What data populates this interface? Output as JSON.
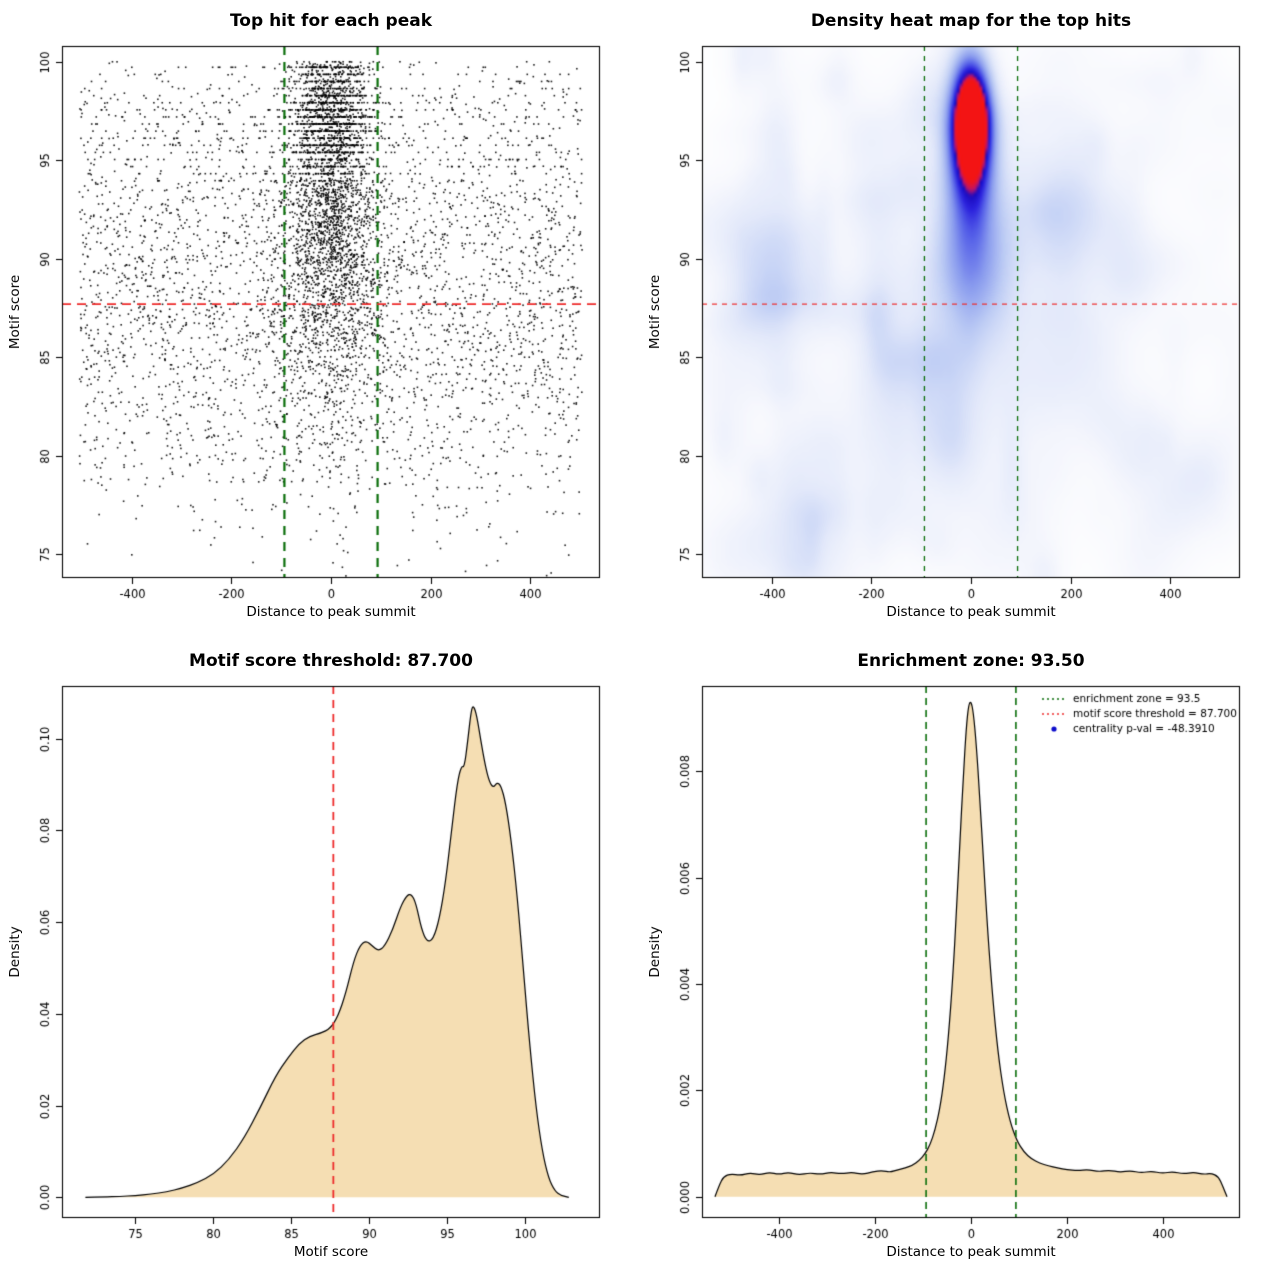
{
  "figure": {
    "background": "#ffffff"
  },
  "chart_data": [
    {
      "type": "scatter",
      "title": "Top hit for each peak",
      "xlabel": "Distance to peak summit",
      "ylabel": "Motif score",
      "xlim": [
        -540,
        540
      ],
      "ylim": [
        73.8,
        100.8
      ],
      "xticks": [
        -400,
        -200,
        0,
        200,
        400
      ],
      "xtick_labels": [
        "-400",
        "-200",
        "0",
        "200",
        "400"
      ],
      "yticks": [
        75,
        80,
        85,
        90,
        95,
        100
      ],
      "ytick_labels": [
        "75",
        "80",
        "85",
        "90",
        "95",
        "100"
      ],
      "point_color": "#000000",
      "vlines": [
        {
          "x": -93.5,
          "color": "#0a6e0a",
          "width": 2.2,
          "dash": [
            9,
            7
          ]
        },
        {
          "x": 93.5,
          "color": "#0a6e0a",
          "width": 2.2,
          "dash": [
            9,
            7
          ]
        }
      ],
      "hlines": [
        {
          "y": 87.7,
          "color": "#ee2c2c",
          "width": 1.8,
          "dash": [
            9,
            6
          ]
        }
      ],
      "points_model": {
        "seed": 20,
        "n": 6900,
        "y_mixture": [
          {
            "w": 0.3,
            "mu": 97.2,
            "sd": 1.7
          },
          {
            "w": 0.2,
            "mu": 93.2,
            "sd": 1.8
          },
          {
            "w": 0.18,
            "mu": 90.0,
            "sd": 1.7
          },
          {
            "w": 0.16,
            "mu": 86.6,
            "sd": 2.0
          },
          {
            "w": 0.11,
            "mu": 83.0,
            "sd": 2.4
          },
          {
            "w": 0.05,
            "mu": 79.5,
            "sd": 2.6
          }
        ],
        "x_center_sd": 46,
        "x_uniform_halfwidth": 505,
        "band_min_y": 94,
        "band_prob": 0.6,
        "band_step": 0.36
      }
    },
    {
      "type": "heatmap",
      "title": "Density heat map for the top hits",
      "xlabel": "Distance to peak summit",
      "ylabel": "Motif score",
      "xlim": [
        -540,
        540
      ],
      "ylim": [
        73.8,
        100.8
      ],
      "xticks": [
        -400,
        -200,
        0,
        200,
        400
      ],
      "xtick_labels": [
        "-400",
        "-200",
        "0",
        "200",
        "400"
      ],
      "yticks": [
        75,
        80,
        85,
        90,
        95,
        100
      ],
      "ytick_labels": [
        "75",
        "80",
        "85",
        "90",
        "95",
        "100"
      ],
      "vlines": [
        {
          "x": -93.5,
          "color": "#0a6e0a",
          "width": 1.3,
          "dash": [
            5,
            5
          ]
        },
        {
          "x": 93.5,
          "color": "#0a6e0a",
          "width": 1.3,
          "dash": [
            5,
            5
          ]
        }
      ],
      "hlines": [
        {
          "y": 87.7,
          "color": "#ee2c2c",
          "width": 1.2,
          "dash": [
            5,
            5
          ]
        }
      ],
      "colormap": [
        {
          "t": 0.0,
          "c": "#ffffff"
        },
        {
          "t": 0.06,
          "c": "#f7f8fd"
        },
        {
          "t": 0.16,
          "c": "#e3e9fa"
        },
        {
          "t": 0.3,
          "c": "#bccbf4"
        },
        {
          "t": 0.46,
          "c": "#8a9cee"
        },
        {
          "t": 0.6,
          "c": "#5560e8"
        },
        {
          "t": 0.72,
          "c": "#2b22dd"
        },
        {
          "t": 0.82,
          "c": "#1b0bbf"
        },
        {
          "t": 0.88,
          "c": "#b41470"
        },
        {
          "t": 0.94,
          "c": "#e01535"
        },
        {
          "t": 1.0,
          "c": "#f31414"
        }
      ],
      "blobs": [
        {
          "cx": 0,
          "cy": 97.2,
          "sx": 24,
          "sy": 1.9,
          "amp": 1.0
        },
        {
          "cx": 0,
          "cy": 96.0,
          "sx": 33,
          "sy": 2.6,
          "amp": 0.55
        },
        {
          "cx": 0,
          "cy": 93.2,
          "sx": 40,
          "sy": 2.6,
          "amp": 0.23
        },
        {
          "cx": 0,
          "cy": 90.0,
          "sx": 52,
          "sy": 2.2,
          "amp": 0.17
        },
        {
          "cx": 0,
          "cy": 88.0,
          "sx": 80,
          "sy": 3.0,
          "amp": 0.09
        },
        {
          "cx": 0,
          "cy": 85.5,
          "sx": 200,
          "sy": 5.0,
          "amp": 0.05
        },
        {
          "cx": 0,
          "cy": 91.5,
          "sx": 300,
          "sy": 8.0,
          "amp": 0.035
        },
        {
          "cx": 0,
          "cy": 81.0,
          "sx": 280,
          "sy": 4.0,
          "amp": 0.035
        }
      ],
      "noise": {
        "seed": 11,
        "count": 190,
        "amp_min": 0.012,
        "amp_max": 0.05,
        "sx_min": 15,
        "sx_max": 65,
        "sy_min": 0.7,
        "sy_max": 2.3
      }
    },
    {
      "type": "density",
      "title": "Motif score threshold: 87.700",
      "xlabel": "Motif score",
      "ylabel": "Density",
      "xlim": [
        70.3,
        104.8
      ],
      "ylim": [
        -0.0045,
        0.1115
      ],
      "xticks": [
        75,
        80,
        85,
        90,
        95,
        100
      ],
      "xtick_labels": [
        "75",
        "80",
        "85",
        "90",
        "95",
        "100"
      ],
      "yticks": [
        0,
        0.02,
        0.04,
        0.06,
        0.08,
        0.1
      ],
      "ytick_labels": [
        "0.00",
        "0.02",
        "0.04",
        "0.06",
        "0.08",
        "0.10"
      ],
      "fill": "#f5deb3",
      "stroke": "#000000",
      "vlines": [
        {
          "x": 87.7,
          "color": "#ee2c2c",
          "width": 1.8,
          "dash": [
            8,
            6
          ]
        }
      ],
      "curve": [
        [
          71.8,
          0
        ],
        [
          73,
          8e-05
        ],
        [
          74,
          0.0002
        ],
        [
          75,
          0.0004
        ],
        [
          76,
          0.0007
        ],
        [
          77,
          0.0012
        ],
        [
          78,
          0.002
        ],
        [
          79,
          0.0032
        ],
        [
          80,
          0.005
        ],
        [
          81,
          0.0082
        ],
        [
          82,
          0.013
        ],
        [
          83,
          0.0195
        ],
        [
          84,
          0.0265
        ],
        [
          84.8,
          0.0305
        ],
        [
          85.5,
          0.0335
        ],
        [
          86.2,
          0.0352
        ],
        [
          86.9,
          0.0358
        ],
        [
          87.5,
          0.0368
        ],
        [
          88,
          0.0395
        ],
        [
          88.5,
          0.0445
        ],
        [
          89,
          0.0515
        ],
        [
          89.4,
          0.0549
        ],
        [
          89.8,
          0.056
        ],
        [
          90.2,
          0.0548
        ],
        [
          90.6,
          0.0537
        ],
        [
          91,
          0.0548
        ],
        [
          91.5,
          0.0583
        ],
        [
          92,
          0.0633
        ],
        [
          92.4,
          0.0658
        ],
        [
          92.7,
          0.0662
        ],
        [
          93,
          0.0641
        ],
        [
          93.35,
          0.0585
        ],
        [
          93.7,
          0.0557
        ],
        [
          94.1,
          0.0562
        ],
        [
          94.5,
          0.0607
        ],
        [
          94.9,
          0.0688
        ],
        [
          95.3,
          0.0806
        ],
        [
          95.65,
          0.0905
        ],
        [
          95.9,
          0.094
        ],
        [
          96.1,
          0.0938
        ],
        [
          96.3,
          0.099
        ],
        [
          96.55,
          0.1065
        ],
        [
          96.7,
          0.1072
        ],
        [
          96.9,
          0.105
        ],
        [
          97.15,
          0.0997
        ],
        [
          97.45,
          0.094
        ],
        [
          97.7,
          0.0907
        ],
        [
          97.95,
          0.0893
        ],
        [
          98.2,
          0.0905
        ],
        [
          98.45,
          0.0898
        ],
        [
          98.75,
          0.086
        ],
        [
          99.1,
          0.078
        ],
        [
          99.5,
          0.0655
        ],
        [
          99.9,
          0.049
        ],
        [
          100.3,
          0.033
        ],
        [
          100.7,
          0.0195
        ],
        [
          101.1,
          0.01
        ],
        [
          101.5,
          0.0042
        ],
        [
          101.9,
          0.0014
        ],
        [
          102.3,
          0.0004
        ],
        [
          102.8,
          0
        ]
      ]
    },
    {
      "type": "density",
      "title": "Enrichment zone: 93.50",
      "xlabel": "Distance to peak summit",
      "ylabel": "Density",
      "xlim": [
        -560,
        560
      ],
      "ylim": [
        -0.0004,
        0.0096
      ],
      "xticks": [
        -400,
        -200,
        0,
        200,
        400
      ],
      "xtick_labels": [
        "-400",
        "-200",
        "0",
        "200",
        "400"
      ],
      "yticks": [
        0,
        0.002,
        0.004,
        0.006,
        0.008
      ],
      "ytick_labels": [
        "0.000",
        "0.002",
        "0.004",
        "0.006",
        "0.008"
      ],
      "fill": "#f5deb3",
      "stroke": "#000000",
      "vlines": [
        {
          "x": -93.5,
          "color": "#0a6e0a",
          "width": 1.6,
          "dash": [
            7,
            5
          ]
        },
        {
          "x": 93.5,
          "color": "#0a6e0a",
          "width": 1.6,
          "dash": [
            7,
            5
          ]
        }
      ],
      "legend": {
        "items": [
          {
            "label": "enrichment zone = 93.5",
            "type": "line",
            "color": "#0a6e0a"
          },
          {
            "label": "motif score threshold = 87.700",
            "type": "line",
            "color": "#ee2c2c"
          },
          {
            "label": "centrality p-val = -48.3910",
            "type": "point",
            "color": "#0d0dcc"
          }
        ]
      },
      "curve": [
        [
          -533,
          0
        ],
        [
          -524,
          0.00022
        ],
        [
          -515,
          0.00038
        ],
        [
          -500,
          0.00043
        ],
        [
          -480,
          0.0004
        ],
        [
          -460,
          0.00045
        ],
        [
          -440,
          0.00041
        ],
        [
          -420,
          0.00046
        ],
        [
          -400,
          0.00042
        ],
        [
          -380,
          0.00046
        ],
        [
          -358,
          0.00041
        ],
        [
          -336,
          0.00045
        ],
        [
          -314,
          0.00042
        ],
        [
          -292,
          0.00046
        ],
        [
          -270,
          0.00043
        ],
        [
          -248,
          0.00046
        ],
        [
          -226,
          0.00042
        ],
        [
          -204,
          0.00047
        ],
        [
          -185,
          0.00049
        ],
        [
          -168,
          0.00046
        ],
        [
          -152,
          0.00051
        ],
        [
          -137,
          0.00054
        ],
        [
          -122,
          0.00059
        ],
        [
          -108,
          0.00068
        ],
        [
          -96,
          0.0008
        ],
        [
          -85,
          0.00098
        ],
        [
          -75,
          0.00125
        ],
        [
          -65,
          0.00165
        ],
        [
          -56,
          0.0022
        ],
        [
          -47,
          0.003
        ],
        [
          -38,
          0.0041
        ],
        [
          -30,
          0.0054
        ],
        [
          -23,
          0.0067
        ],
        [
          -16,
          0.0079
        ],
        [
          -10,
          0.0088
        ],
        [
          -5,
          0.00925
        ],
        [
          0,
          0.00932
        ],
        [
          5,
          0.0091
        ],
        [
          11,
          0.0085
        ],
        [
          18,
          0.00755
        ],
        [
          26,
          0.0063
        ],
        [
          35,
          0.00495
        ],
        [
          45,
          0.00375
        ],
        [
          56,
          0.00272
        ],
        [
          68,
          0.00196
        ],
        [
          81,
          0.00142
        ],
        [
          95,
          0.00106
        ],
        [
          110,
          0.00084
        ],
        [
          126,
          0.00071
        ],
        [
          143,
          0.00063
        ],
        [
          161,
          0.00058
        ],
        [
          180,
          0.00054
        ],
        [
          200,
          0.00051
        ],
        [
          222,
          0.00049
        ],
        [
          244,
          0.00051
        ],
        [
          266,
          0.00047
        ],
        [
          288,
          0.0005
        ],
        [
          310,
          0.00046
        ],
        [
          332,
          0.00049
        ],
        [
          354,
          0.00045
        ],
        [
          376,
          0.00048
        ],
        [
          398,
          0.00044
        ],
        [
          420,
          0.00047
        ],
        [
          442,
          0.00043
        ],
        [
          464,
          0.00046
        ],
        [
          484,
          0.00042
        ],
        [
          500,
          0.00044
        ],
        [
          515,
          0.00038
        ],
        [
          524,
          0.0002
        ],
        [
          533,
          0
        ]
      ]
    }
  ]
}
